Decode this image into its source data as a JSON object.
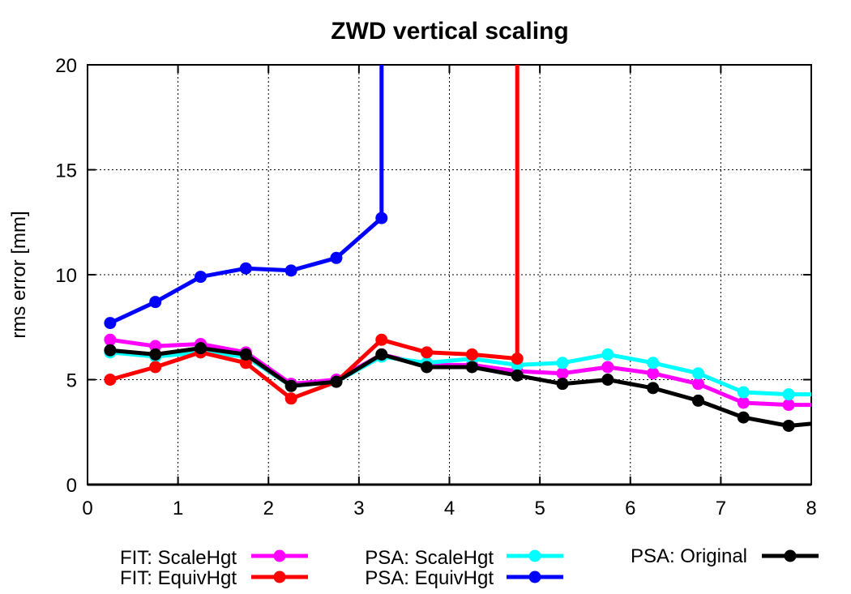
{
  "chart_data": {
    "type": "line",
    "title": "ZWD vertical scaling",
    "xlabel": "",
    "ylabel": "rms error [mm]",
    "xlim": [
      0,
      8
    ],
    "ylim": [
      0,
      20
    ],
    "xticks": [
      "0",
      "1",
      "2",
      "3",
      "4",
      "5",
      "6",
      "7",
      "8"
    ],
    "yticks": [
      "0",
      "5",
      "10",
      "15",
      "20"
    ],
    "grid": true,
    "legend_position": "bottom",
    "series": [
      {
        "name": "FIT: ScaleHgt",
        "color": "#ff00ff",
        "x": [
          0.25,
          0.75,
          1.25,
          1.75,
          2.25,
          2.75,
          3.25,
          3.75,
          4.25,
          4.75,
          5.25,
          5.75,
          6.25,
          6.75,
          7.25,
          7.75,
          8.0
        ],
        "y": [
          6.9,
          6.6,
          6.7,
          6.3,
          4.8,
          5.0,
          6.2,
          5.7,
          5.7,
          5.4,
          5.3,
          5.6,
          5.3,
          4.8,
          3.9,
          3.8,
          3.8
        ]
      },
      {
        "name": "FIT: EquivHgt",
        "color": "#ff0000",
        "x": [
          0.25,
          0.75,
          1.25,
          1.75,
          2.25,
          2.75,
          3.25,
          3.75,
          4.25,
          4.75,
          4.75
        ],
        "y": [
          5.0,
          5.6,
          6.3,
          5.8,
          4.1,
          4.9,
          6.9,
          6.3,
          6.2,
          6.0,
          20.0
        ]
      },
      {
        "name": "PSA: ScaleHgt",
        "color": "#00ffff",
        "x": [
          0.25,
          0.75,
          1.25,
          1.75,
          2.25,
          2.75,
          3.25,
          3.75,
          4.25,
          4.75,
          5.25,
          5.75,
          6.25,
          6.75,
          7.25,
          7.75,
          8.0
        ],
        "y": [
          6.3,
          6.1,
          6.3,
          6.1,
          4.7,
          4.9,
          6.1,
          5.8,
          6.0,
          5.7,
          5.8,
          6.2,
          5.8,
          5.3,
          4.4,
          4.3,
          4.3
        ]
      },
      {
        "name": "PSA: EquivHgt",
        "color": "#0000ff",
        "x": [
          0.25,
          0.75,
          1.25,
          1.75,
          2.25,
          2.75,
          3.25,
          3.25
        ],
        "y": [
          7.7,
          8.7,
          9.9,
          10.3,
          10.2,
          10.8,
          12.7,
          20.0
        ]
      },
      {
        "name": "PSA: Original",
        "color": "#000000",
        "x": [
          0.25,
          0.75,
          1.25,
          1.75,
          2.25,
          2.75,
          3.25,
          3.75,
          4.25,
          4.75,
          5.25,
          5.75,
          6.25,
          6.75,
          7.25,
          7.75,
          8.0
        ],
        "y": [
          6.4,
          6.2,
          6.5,
          6.2,
          4.7,
          4.9,
          6.2,
          5.6,
          5.6,
          5.2,
          4.8,
          5.0,
          4.6,
          4.0,
          3.2,
          2.8,
          2.9
        ]
      }
    ]
  }
}
